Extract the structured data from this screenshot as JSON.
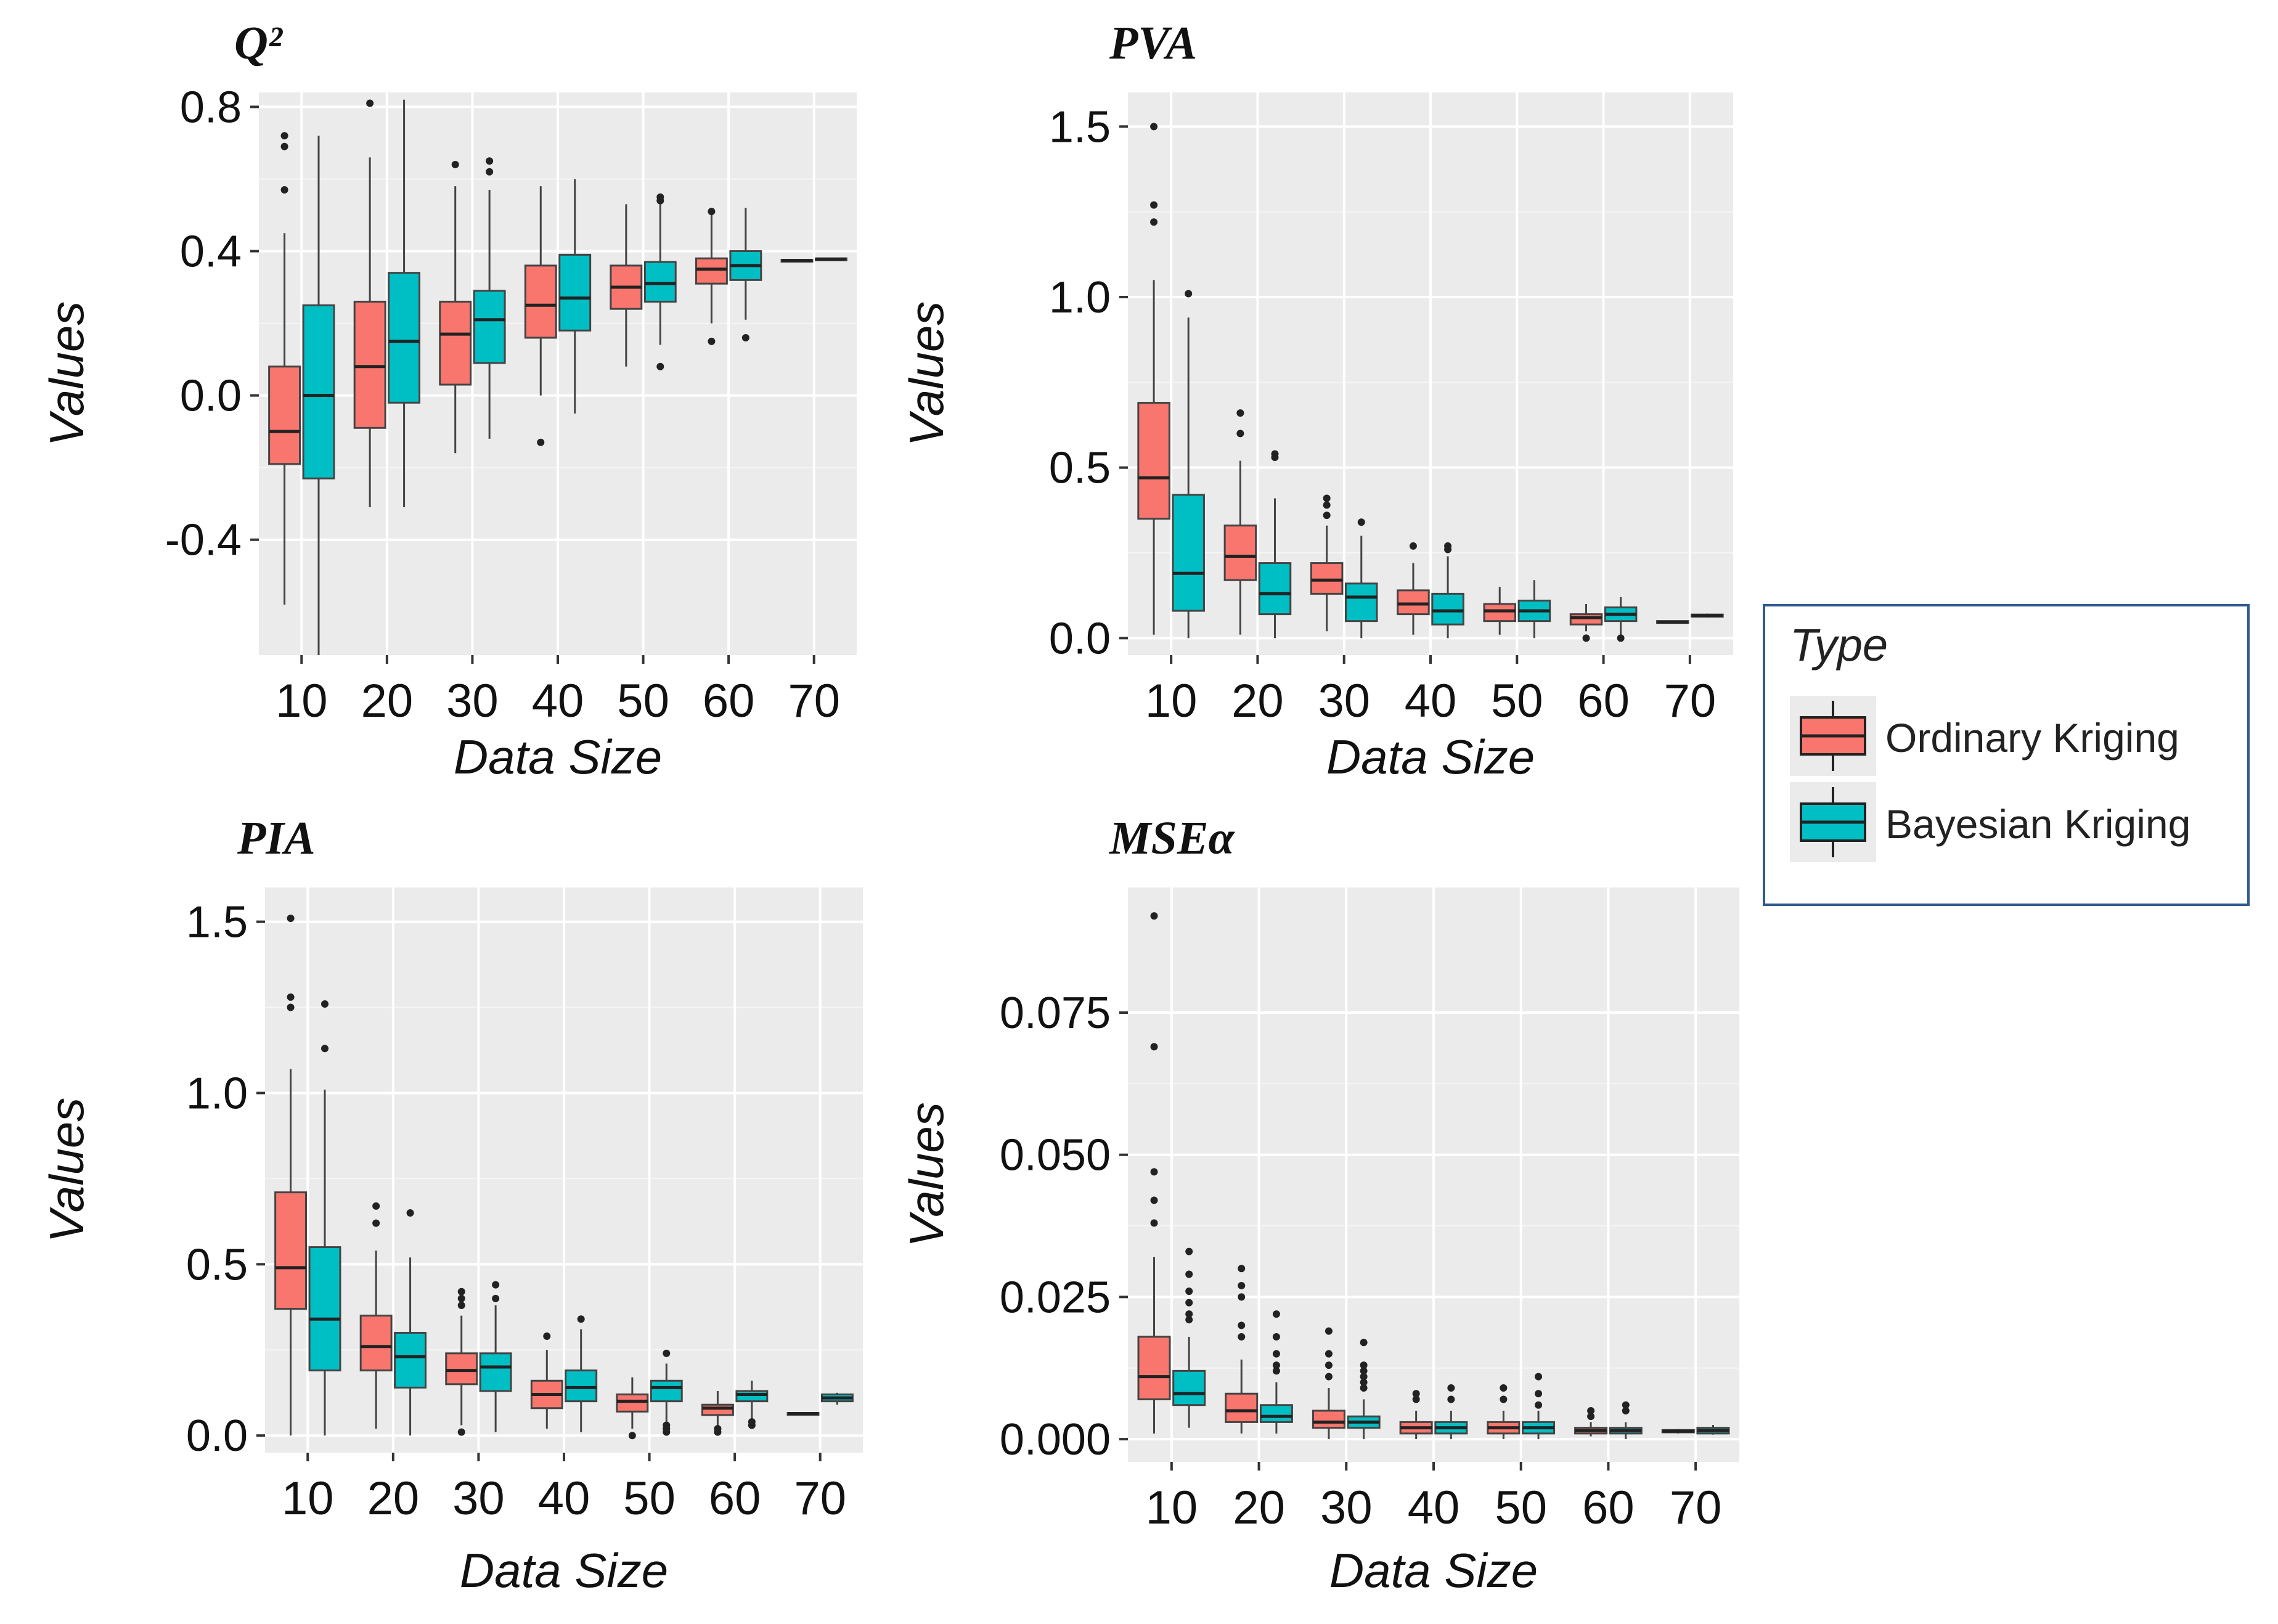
{
  "legend": {
    "title": "Type",
    "items": [
      {
        "label": "Ordinary Kriging",
        "color": "#F8766D"
      },
      {
        "label": "Bayesian Kriging",
        "color": "#00BFC4"
      }
    ]
  },
  "chart_data": [
    {
      "type": "boxplot",
      "title": "Q²",
      "xlabel": "Data Size",
      "ylabel": "Values",
      "categories": [
        "10",
        "20",
        "30",
        "40",
        "50",
        "60",
        "70"
      ],
      "ylim": [
        -0.72,
        0.84
      ],
      "yticks": [
        -0.4,
        0.0,
        0.4,
        0.8
      ],
      "ytick_labels": [
        "-0.4",
        "0.0",
        "0.4",
        "0.8"
      ],
      "series": [
        {
          "name": "Ordinary Kriging",
          "boxes": [
            {
              "q1": -0.19,
              "median": -0.1,
              "q3": 0.08,
              "wlo": -0.58,
              "whi": 0.45,
              "out": [
                0.72,
                0.69,
                0.57
              ]
            },
            {
              "q1": -0.09,
              "median": 0.08,
              "q3": 0.26,
              "wlo": -0.31,
              "whi": 0.66,
              "out": [
                0.81
              ]
            },
            {
              "q1": 0.03,
              "median": 0.17,
              "q3": 0.26,
              "wlo": -0.16,
              "whi": 0.58,
              "out": [
                0.64
              ]
            },
            {
              "q1": 0.16,
              "median": 0.25,
              "q3": 0.36,
              "wlo": 0.0,
              "whi": 0.58,
              "out": [
                -0.13
              ]
            },
            {
              "q1": 0.24,
              "median": 0.3,
              "q3": 0.36,
              "wlo": 0.08,
              "whi": 0.53,
              "out": []
            },
            {
              "q1": 0.31,
              "median": 0.35,
              "q3": 0.38,
              "wlo": 0.2,
              "whi": 0.5,
              "out": [
                0.51,
                0.15
              ]
            },
            {
              "q1": 0.372,
              "median": 0.374,
              "q3": 0.376,
              "wlo": 0.37,
              "whi": 0.378,
              "out": []
            }
          ]
        },
        {
          "name": "Bayesian Kriging",
          "boxes": [
            {
              "q1": -0.23,
              "median": 0.0,
              "q3": 0.25,
              "wlo": -0.72,
              "whi": 0.72,
              "out": []
            },
            {
              "q1": -0.02,
              "median": 0.15,
              "q3": 0.34,
              "wlo": -0.31,
              "whi": 0.82,
              "out": []
            },
            {
              "q1": 0.09,
              "median": 0.21,
              "q3": 0.29,
              "wlo": -0.12,
              "whi": 0.57,
              "out": [
                0.65,
                0.62
              ]
            },
            {
              "q1": 0.18,
              "median": 0.27,
              "q3": 0.39,
              "wlo": -0.05,
              "whi": 0.6,
              "out": []
            },
            {
              "q1": 0.26,
              "median": 0.31,
              "q3": 0.37,
              "wlo": 0.14,
              "whi": 0.53,
              "out": [
                0.55,
                0.54,
                0.08
              ]
            },
            {
              "q1": 0.32,
              "median": 0.36,
              "q3": 0.4,
              "wlo": 0.21,
              "whi": 0.52,
              "out": [
                0.16
              ]
            },
            {
              "q1": 0.376,
              "median": 0.378,
              "q3": 0.38,
              "wlo": 0.374,
              "whi": 0.382,
              "out": []
            }
          ]
        }
      ]
    },
    {
      "type": "boxplot",
      "title": "PVA",
      "xlabel": "Data Size",
      "ylabel": "Values",
      "categories": [
        "10",
        "20",
        "30",
        "40",
        "50",
        "60",
        "70"
      ],
      "ylim": [
        -0.05,
        1.6
      ],
      "yticks": [
        0.0,
        0.5,
        1.0,
        1.5
      ],
      "ytick_labels": [
        "0.0",
        "0.5",
        "1.0",
        "1.5"
      ],
      "series": [
        {
          "name": "Ordinary Kriging",
          "boxes": [
            {
              "q1": 0.35,
              "median": 0.47,
              "q3": 0.69,
              "wlo": 0.01,
              "whi": 1.05,
              "out": [
                1.5,
                1.27,
                1.22
              ]
            },
            {
              "q1": 0.17,
              "median": 0.24,
              "q3": 0.33,
              "wlo": 0.01,
              "whi": 0.52,
              "out": [
                0.66,
                0.6
              ]
            },
            {
              "q1": 0.13,
              "median": 0.17,
              "q3": 0.22,
              "wlo": 0.02,
              "whi": 0.33,
              "out": [
                0.41,
                0.39,
                0.36
              ]
            },
            {
              "q1": 0.07,
              "median": 0.1,
              "q3": 0.14,
              "wlo": 0.01,
              "whi": 0.22,
              "out": [
                0.27
              ]
            },
            {
              "q1": 0.05,
              "median": 0.08,
              "q3": 0.1,
              "wlo": 0.01,
              "whi": 0.15,
              "out": []
            },
            {
              "q1": 0.04,
              "median": 0.06,
              "q3": 0.07,
              "wlo": 0.02,
              "whi": 0.1,
              "out": [
                0.0
              ]
            },
            {
              "q1": 0.045,
              "median": 0.047,
              "q3": 0.05,
              "wlo": 0.043,
              "whi": 0.052,
              "out": []
            }
          ]
        },
        {
          "name": "Bayesian Kriging",
          "boxes": [
            {
              "q1": 0.08,
              "median": 0.19,
              "q3": 0.42,
              "wlo": 0.0,
              "whi": 0.94,
              "out": [
                1.01
              ]
            },
            {
              "q1": 0.07,
              "median": 0.13,
              "q3": 0.22,
              "wlo": 0.0,
              "whi": 0.41,
              "out": [
                0.54,
                0.53
              ]
            },
            {
              "q1": 0.05,
              "median": 0.12,
              "q3": 0.16,
              "wlo": 0.0,
              "whi": 0.3,
              "out": [
                0.34
              ]
            },
            {
              "q1": 0.04,
              "median": 0.08,
              "q3": 0.13,
              "wlo": 0.0,
              "whi": 0.24,
              "out": [
                0.27,
                0.26
              ]
            },
            {
              "q1": 0.05,
              "median": 0.08,
              "q3": 0.11,
              "wlo": 0.0,
              "whi": 0.17,
              "out": []
            },
            {
              "q1": 0.05,
              "median": 0.07,
              "q3": 0.09,
              "wlo": 0.0,
              "whi": 0.12,
              "out": [
                0.0
              ]
            },
            {
              "q1": 0.063,
              "median": 0.066,
              "q3": 0.069,
              "wlo": 0.06,
              "whi": 0.072,
              "out": []
            }
          ]
        }
      ]
    },
    {
      "type": "boxplot",
      "title": "PIA",
      "xlabel": "Data Size",
      "ylabel": "Values",
      "categories": [
        "10",
        "20",
        "30",
        "40",
        "50",
        "60",
        "70"
      ],
      "ylim": [
        -0.05,
        1.6
      ],
      "yticks": [
        0.0,
        0.5,
        1.0,
        1.5
      ],
      "ytick_labels": [
        "0.0",
        "0.5",
        "1.0",
        "1.5"
      ],
      "series": [
        {
          "name": "Ordinary Kriging",
          "boxes": [
            {
              "q1": 0.37,
              "median": 0.49,
              "q3": 0.71,
              "wlo": 0.0,
              "whi": 1.07,
              "out": [
                1.51,
                1.28,
                1.25
              ]
            },
            {
              "q1": 0.19,
              "median": 0.26,
              "q3": 0.35,
              "wlo": 0.02,
              "whi": 0.54,
              "out": [
                0.67,
                0.62
              ]
            },
            {
              "q1": 0.15,
              "median": 0.19,
              "q3": 0.24,
              "wlo": 0.03,
              "whi": 0.35,
              "out": [
                0.42,
                0.4,
                0.38,
                0.01
              ]
            },
            {
              "q1": 0.08,
              "median": 0.12,
              "q3": 0.16,
              "wlo": 0.02,
              "whi": 0.25,
              "out": [
                0.29
              ]
            },
            {
              "q1": 0.07,
              "median": 0.1,
              "q3": 0.12,
              "wlo": 0.02,
              "whi": 0.17,
              "out": [
                0.0
              ]
            },
            {
              "q1": 0.06,
              "median": 0.08,
              "q3": 0.09,
              "wlo": 0.02,
              "whi": 0.13,
              "out": [
                0.01,
                0.02
              ]
            },
            {
              "q1": 0.062,
              "median": 0.064,
              "q3": 0.066,
              "wlo": 0.06,
              "whi": 0.068,
              "out": []
            }
          ]
        },
        {
          "name": "Bayesian Kriging",
          "boxes": [
            {
              "q1": 0.19,
              "median": 0.34,
              "q3": 0.55,
              "wlo": 0.0,
              "whi": 1.01,
              "out": [
                1.26,
                1.13
              ]
            },
            {
              "q1": 0.14,
              "median": 0.23,
              "q3": 0.3,
              "wlo": 0.0,
              "whi": 0.52,
              "out": [
                0.65
              ]
            },
            {
              "q1": 0.13,
              "median": 0.2,
              "q3": 0.24,
              "wlo": 0.01,
              "whi": 0.38,
              "out": [
                0.44,
                0.4
              ]
            },
            {
              "q1": 0.1,
              "median": 0.14,
              "q3": 0.19,
              "wlo": 0.01,
              "whi": 0.31,
              "out": [
                0.34
              ]
            },
            {
              "q1": 0.1,
              "median": 0.14,
              "q3": 0.16,
              "wlo": 0.04,
              "whi": 0.21,
              "out": [
                0.24,
                0.03,
                0.02,
                0.01
              ]
            },
            {
              "q1": 0.1,
              "median": 0.12,
              "q3": 0.13,
              "wlo": 0.05,
              "whi": 0.16,
              "out": [
                0.04,
                0.03
              ]
            },
            {
              "q1": 0.1,
              "median": 0.11,
              "q3": 0.12,
              "wlo": 0.09,
              "whi": 0.125,
              "out": []
            }
          ]
        }
      ]
    },
    {
      "type": "boxplot",
      "title": "MSEα",
      "xlabel": "Data Size",
      "ylabel": "Values",
      "categories": [
        "10",
        "20",
        "30",
        "40",
        "50",
        "60",
        "70"
      ],
      "ylim": [
        -0.004,
        0.097
      ],
      "yticks": [
        0.0,
        0.025,
        0.05,
        0.075
      ],
      "ytick_labels": [
        "0.000",
        "0.025",
        "0.050",
        "0.075"
      ],
      "series": [
        {
          "name": "Ordinary Kriging",
          "boxes": [
            {
              "q1": 0.007,
              "median": 0.011,
              "q3": 0.018,
              "wlo": 0.001,
              "whi": 0.032,
              "out": [
                0.092,
                0.069,
                0.047,
                0.042,
                0.038
              ]
            },
            {
              "q1": 0.003,
              "median": 0.005,
              "q3": 0.008,
              "wlo": 0.001,
              "whi": 0.014,
              "out": [
                0.03,
                0.027,
                0.025,
                0.02,
                0.018
              ]
            },
            {
              "q1": 0.002,
              "median": 0.003,
              "q3": 0.005,
              "wlo": 0.0,
              "whi": 0.009,
              "out": [
                0.019,
                0.015,
                0.013,
                0.011
              ]
            },
            {
              "q1": 0.001,
              "median": 0.002,
              "q3": 0.003,
              "wlo": 0.0,
              "whi": 0.005,
              "out": [
                0.008,
                0.007
              ]
            },
            {
              "q1": 0.001,
              "median": 0.002,
              "q3": 0.003,
              "wlo": 0.0,
              "whi": 0.005,
              "out": [
                0.009,
                0.007
              ]
            },
            {
              "q1": 0.001,
              "median": 0.0015,
              "q3": 0.002,
              "wlo": 0.0005,
              "whi": 0.003,
              "out": [
                0.005,
                0.004
              ]
            },
            {
              "q1": 0.0012,
              "median": 0.0014,
              "q3": 0.0016,
              "wlo": 0.001,
              "whi": 0.0018,
              "out": []
            }
          ]
        },
        {
          "name": "Bayesian Kriging",
          "boxes": [
            {
              "q1": 0.006,
              "median": 0.008,
              "q3": 0.012,
              "wlo": 0.002,
              "whi": 0.018,
              "out": [
                0.033,
                0.029,
                0.026,
                0.024,
                0.022,
                0.021
              ]
            },
            {
              "q1": 0.003,
              "median": 0.004,
              "q3": 0.006,
              "wlo": 0.001,
              "whi": 0.01,
              "out": [
                0.022,
                0.018,
                0.015,
                0.013,
                0.012
              ]
            },
            {
              "q1": 0.002,
              "median": 0.003,
              "q3": 0.004,
              "wlo": 0.0,
              "whi": 0.007,
              "out": [
                0.017,
                0.013,
                0.012,
                0.011,
                0.01,
                0.009
              ]
            },
            {
              "q1": 0.001,
              "median": 0.002,
              "q3": 0.003,
              "wlo": 0.0,
              "whi": 0.005,
              "out": [
                0.009,
                0.007
              ]
            },
            {
              "q1": 0.001,
              "median": 0.002,
              "q3": 0.003,
              "wlo": 0.0,
              "whi": 0.005,
              "out": [
                0.011,
                0.008,
                0.006
              ]
            },
            {
              "q1": 0.001,
              "median": 0.0015,
              "q3": 0.002,
              "wlo": 0.0,
              "whi": 0.003,
              "out": [
                0.006,
                0.005
              ]
            },
            {
              "q1": 0.001,
              "median": 0.0015,
              "q3": 0.002,
              "wlo": 0.0008,
              "whi": 0.0025,
              "out": []
            }
          ]
        }
      ]
    }
  ]
}
